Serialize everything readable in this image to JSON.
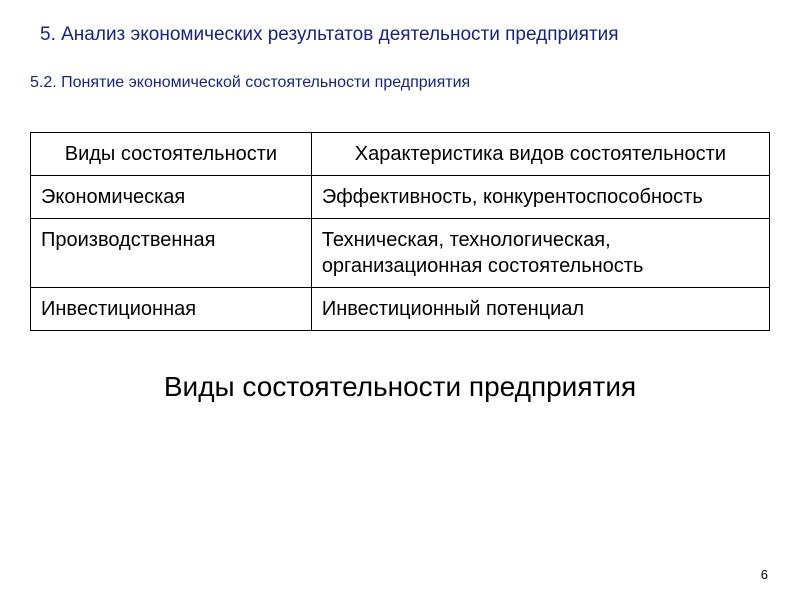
{
  "headings": {
    "main": "5. Анализ экономических результатов деятельности предприятия",
    "sub": "5.2. Понятие экономической состоятельности предприятия"
  },
  "table": {
    "columns": [
      "Виды состоятельности",
      "Характеристика видов состоятельности"
    ],
    "rows": [
      [
        "Экономическая",
        "Эффективность, конкурентоспособность"
      ],
      [
        "Производственная",
        "Техническая, технологическая, организационная состоятельность"
      ],
      [
        "Инвестиционная",
        "Инвестиционный потенциал"
      ]
    ],
    "border_color": "#000000",
    "text_color": "#000000",
    "font_size_pt": 15,
    "col_widths_pct": [
      38,
      62
    ]
  },
  "caption": "Виды состоятельности предприятия",
  "page_number": "6",
  "colors": {
    "heading": "#1a237e",
    "body_text": "#000000",
    "background": "#ffffff"
  },
  "typography": {
    "heading_main_size_pt": 14,
    "heading_sub_size_pt": 12,
    "table_size_pt": 15,
    "caption_size_pt": 21,
    "font_family": "Arial"
  }
}
